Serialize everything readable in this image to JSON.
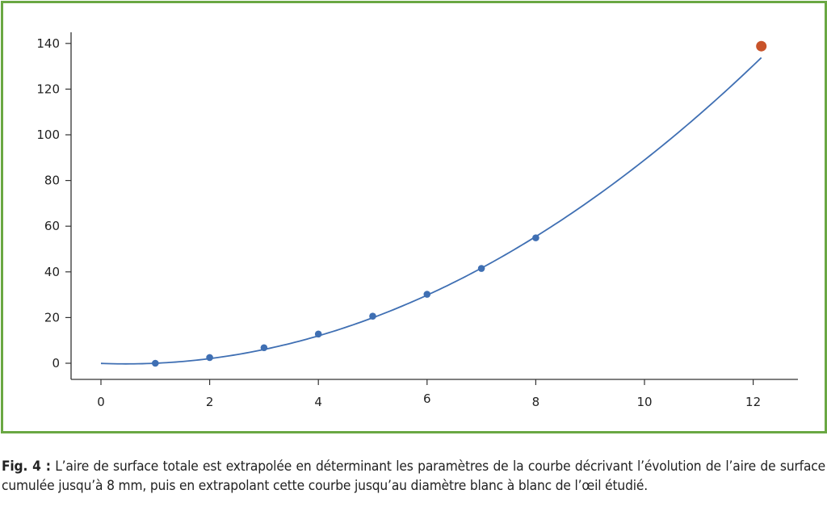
{
  "chart_data": {
    "type": "line",
    "x_ticks": [
      "0",
      "2",
      "4",
      "6",
      "8",
      "10",
      "12"
    ],
    "y_ticks": [
      "0",
      "20",
      "40",
      "60",
      "80",
      "100",
      "120",
      "140"
    ],
    "xlim": [
      -0.6,
      12.8
    ],
    "ylim": [
      -7,
      150
    ],
    "series": [
      {
        "values_x": [
          1,
          2,
          3,
          4,
          5,
          6,
          7,
          8
        ],
        "values_y": [
          0,
          2.5,
          6.8,
          12.8,
          20.6,
          30.2,
          41.5,
          54.9
        ],
        "color": "#3f6fb3",
        "role": "measured"
      },
      {
        "values_x": [
          12.15
        ],
        "values_y": [
          138.8
        ],
        "color": "#c8532a",
        "role": "extrapolated"
      }
    ],
    "fit_curve": {
      "a": 0.9818,
      "b": -0.9136,
      "c": -0.0682,
      "x_from": 0,
      "x_to": 12.15,
      "color": "#3f6fb3"
    },
    "grid": false,
    "title": "",
    "xlabel": "",
    "ylabel": ""
  },
  "caption": {
    "label": "Fig. 4 :",
    "text": " L’aire de surface totale est extrapolée en déterminant les paramètres de la courbe décrivant l’évolution de l’aire de surface cumulée jusqu’à 8 mm, puis en extrapolant cette courbe jusqu’au diamètre blanc à blanc de l’œil étudié."
  },
  "colors": {
    "frame": "#6aa843",
    "series": "#3f6fb3",
    "extrapolated": "#c8532a"
  }
}
